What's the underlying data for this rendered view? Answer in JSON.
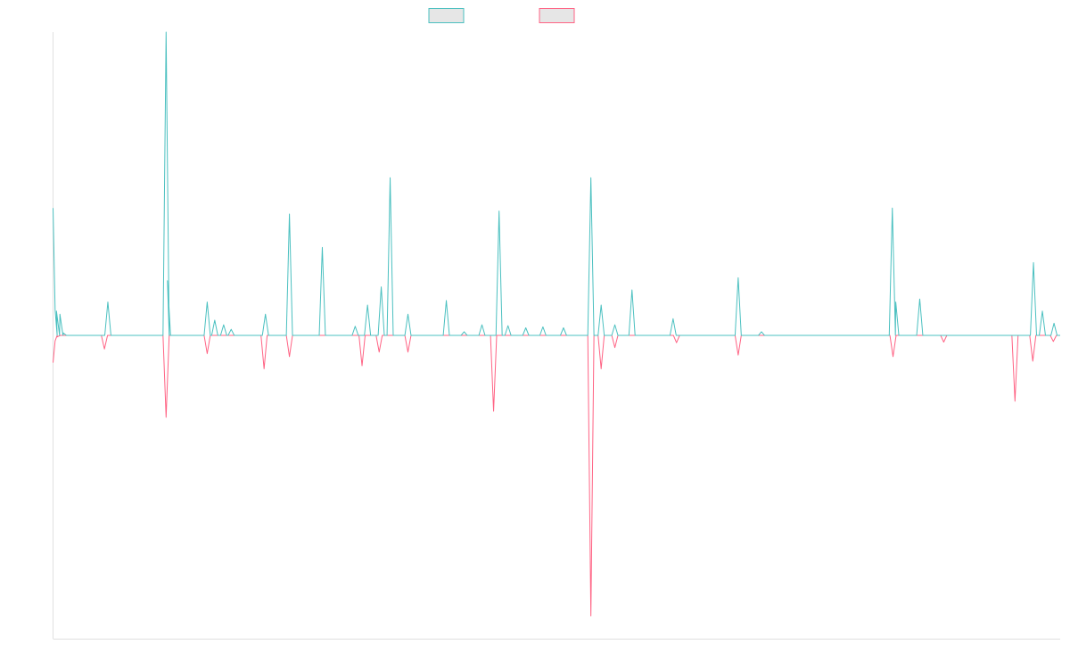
{
  "chart_data": {
    "type": "line",
    "title": "",
    "xlabel": "",
    "ylabel": "",
    "grid": false,
    "legend_position": "top-center",
    "x_start": 0,
    "x_end": 147,
    "ylim": [
      -100,
      100
    ],
    "colors": {
      "series_a": "#4bc0c0",
      "series_b": "#ff6384",
      "swatch_fill": "#e6e6e6",
      "axis": "#e0e0e0"
    },
    "series": [
      {
        "key": "a",
        "points": [
          [
            0,
            42
          ],
          [
            0.5,
            8
          ],
          [
            1,
            7
          ],
          [
            1.5,
            0.8
          ],
          [
            8,
            11
          ],
          [
            16.5,
            100
          ],
          [
            16.7,
            18
          ],
          [
            22.5,
            11
          ],
          [
            23.6,
            5
          ],
          [
            24.9,
            3.5
          ],
          [
            26,
            2
          ],
          [
            31,
            7
          ],
          [
            34.5,
            40
          ],
          [
            39.3,
            29
          ],
          [
            44.1,
            3
          ],
          [
            45.9,
            10
          ],
          [
            47.9,
            16
          ],
          [
            49.2,
            52
          ],
          [
            51.8,
            7
          ],
          [
            57.4,
            11.5
          ],
          [
            60,
            1.2
          ],
          [
            62.6,
            3.5
          ],
          [
            65.1,
            41
          ],
          [
            66.4,
            3.2
          ],
          [
            69,
            2.5
          ],
          [
            71.5,
            2.8
          ],
          [
            74.5,
            2.5
          ],
          [
            78.5,
            52
          ],
          [
            80,
            10
          ],
          [
            82,
            3.5
          ],
          [
            84.5,
            15
          ],
          [
            90.5,
            5.5
          ],
          [
            100,
            19
          ],
          [
            103.4,
            1.2
          ],
          [
            122.5,
            42
          ],
          [
            123,
            11
          ],
          [
            126.5,
            12
          ],
          [
            143.1,
            24
          ],
          [
            144.4,
            8
          ],
          [
            146.1,
            4
          ]
        ]
      },
      {
        "key": "b",
        "points": [
          [
            0,
            -9
          ],
          [
            0.6,
            -0.5
          ],
          [
            7.5,
            -4.5
          ],
          [
            16.5,
            -27
          ],
          [
            22.5,
            -6
          ],
          [
            30.8,
            -11
          ],
          [
            34.5,
            -7
          ],
          [
            45.1,
            -10
          ],
          [
            47.6,
            -5.5
          ],
          [
            51.8,
            -5.5
          ],
          [
            64.3,
            -25
          ],
          [
            78.5,
            -92.5
          ],
          [
            80,
            -11
          ],
          [
            82,
            -4
          ],
          [
            91,
            -2.4
          ],
          [
            100,
            -6.5
          ],
          [
            122.6,
            -7
          ],
          [
            130,
            -2.2
          ],
          [
            140.4,
            -21.7
          ],
          [
            143,
            -8.5
          ],
          [
            146,
            -2
          ]
        ]
      }
    ]
  }
}
